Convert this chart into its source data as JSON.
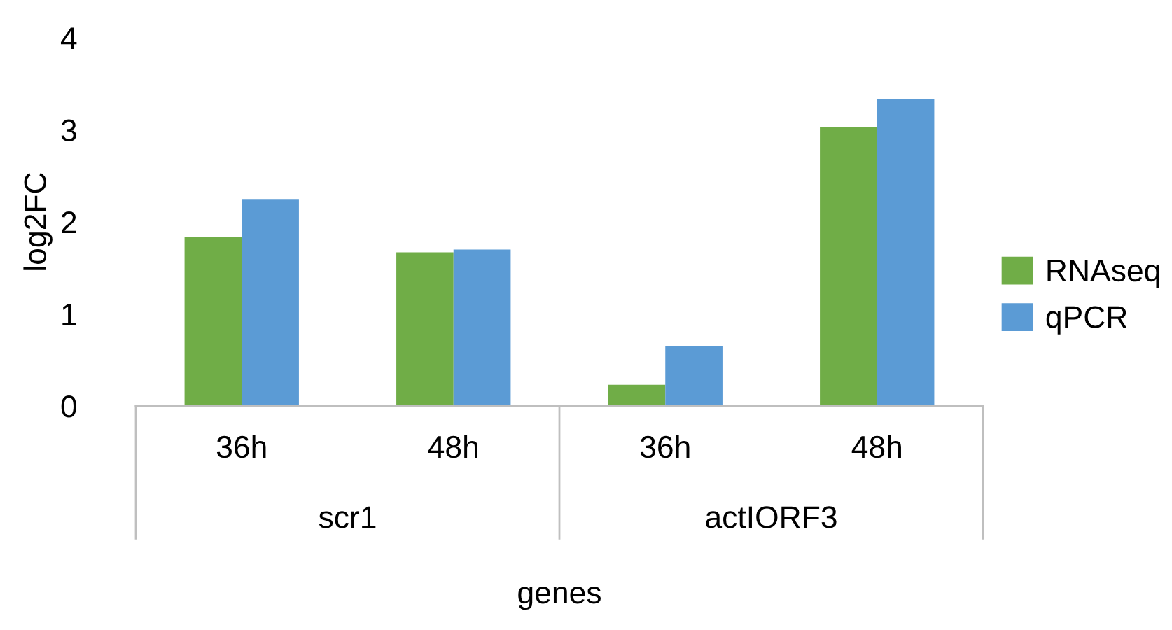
{
  "chart_data": {
    "type": "bar",
    "xlabel": "genes",
    "ylabel": "log2FC",
    "categories": [
      "36h",
      "48h",
      "36h",
      "48h"
    ],
    "annotations": [
      "scr1",
      "actIORF3"
    ],
    "series": [
      {
        "name": "RNAseq",
        "color": "#70ad47",
        "values": [
          1.84,
          1.67,
          0.23,
          3.03
        ]
      },
      {
        "name": "qPCR",
        "color": "#5b9bd5",
        "values": [
          2.25,
          1.7,
          0.65,
          3.33
        ]
      }
    ],
    "ylim": [
      0,
      4
    ],
    "yticks": [
      0,
      1,
      2,
      3,
      4
    ],
    "grid": false,
    "legend": "right"
  }
}
